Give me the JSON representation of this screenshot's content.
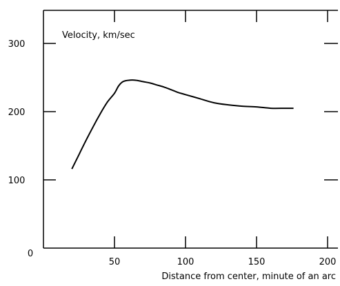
{
  "chart_data": {
    "type": "line",
    "title": "",
    "ylabel": "Velocity, km/sec",
    "xlabel": "Distance from center, minute of an arc",
    "xlim": [
      0,
      210
    ],
    "ylim": [
      0,
      350
    ],
    "x_ticks": [
      50,
      100,
      150,
      200
    ],
    "y_ticks": [
      100,
      200,
      300
    ],
    "origin_label": "0",
    "grid": false,
    "series": [
      {
        "color": "#000000",
        "points": [
          [
            20,
            116
          ],
          [
            25,
            137
          ],
          [
            30,
            158
          ],
          [
            35,
            178
          ],
          [
            40,
            197
          ],
          [
            45,
            214
          ],
          [
            50,
            227
          ],
          [
            53,
            238
          ],
          [
            56,
            244
          ],
          [
            60,
            246
          ],
          [
            65,
            246
          ],
          [
            70,
            244
          ],
          [
            75,
            242
          ],
          [
            80,
            239
          ],
          [
            85,
            236
          ],
          [
            90,
            232
          ],
          [
            95,
            228
          ],
          [
            100,
            225
          ],
          [
            110,
            219
          ],
          [
            120,
            213
          ],
          [
            130,
            210
          ],
          [
            140,
            208
          ],
          [
            150,
            207
          ],
          [
            160,
            205
          ],
          [
            170,
            205
          ],
          [
            176,
            205
          ]
        ]
      }
    ]
  }
}
